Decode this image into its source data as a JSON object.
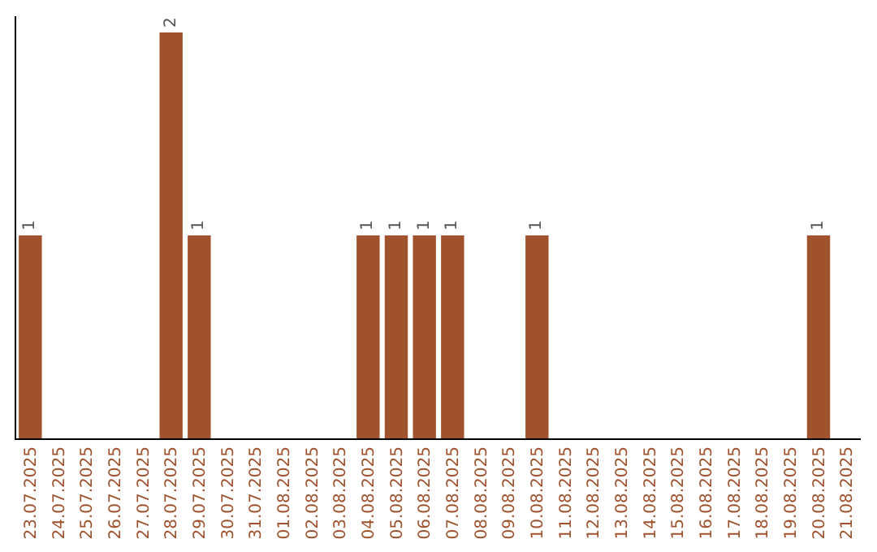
{
  "chart_data": {
    "type": "bar",
    "categories": [
      "23.07.2025",
      "24.07.2025",
      "25.07.2025",
      "26.07.2025",
      "27.07.2025",
      "28.07.2025",
      "29.07.2025",
      "30.07.2025",
      "31.07.2025",
      "01.08.2025",
      "02.08.2025",
      "03.08.2025",
      "04.08.2025",
      "05.08.2025",
      "06.08.2025",
      "07.08.2025",
      "08.08.2025",
      "09.08.2025",
      "10.08.2025",
      "11.08.2025",
      "12.08.2025",
      "13.08.2025",
      "14.08.2025",
      "15.08.2025",
      "16.08.2025",
      "17.08.2025",
      "18.08.2025",
      "19.08.2025",
      "20.08.2025",
      "21.08.2025"
    ],
    "values": [
      1,
      0,
      0,
      0,
      0,
      2,
      1,
      0,
      0,
      0,
      0,
      0,
      1,
      1,
      1,
      1,
      0,
      0,
      1,
      0,
      0,
      0,
      0,
      0,
      0,
      0,
      0,
      0,
      1,
      0
    ],
    "value_labels": [
      "1",
      null,
      null,
      null,
      null,
      "2",
      "1",
      null,
      null,
      null,
      null,
      null,
      "1",
      "1",
      "1",
      "1",
      null,
      null,
      "1",
      null,
      null,
      null,
      null,
      null,
      null,
      null,
      null,
      null,
      "1",
      null
    ],
    "color": "#a0522d",
    "ylim": [
      0,
      2.08
    ],
    "tick_labels": "x",
    "grid": false,
    "legend": false
  }
}
